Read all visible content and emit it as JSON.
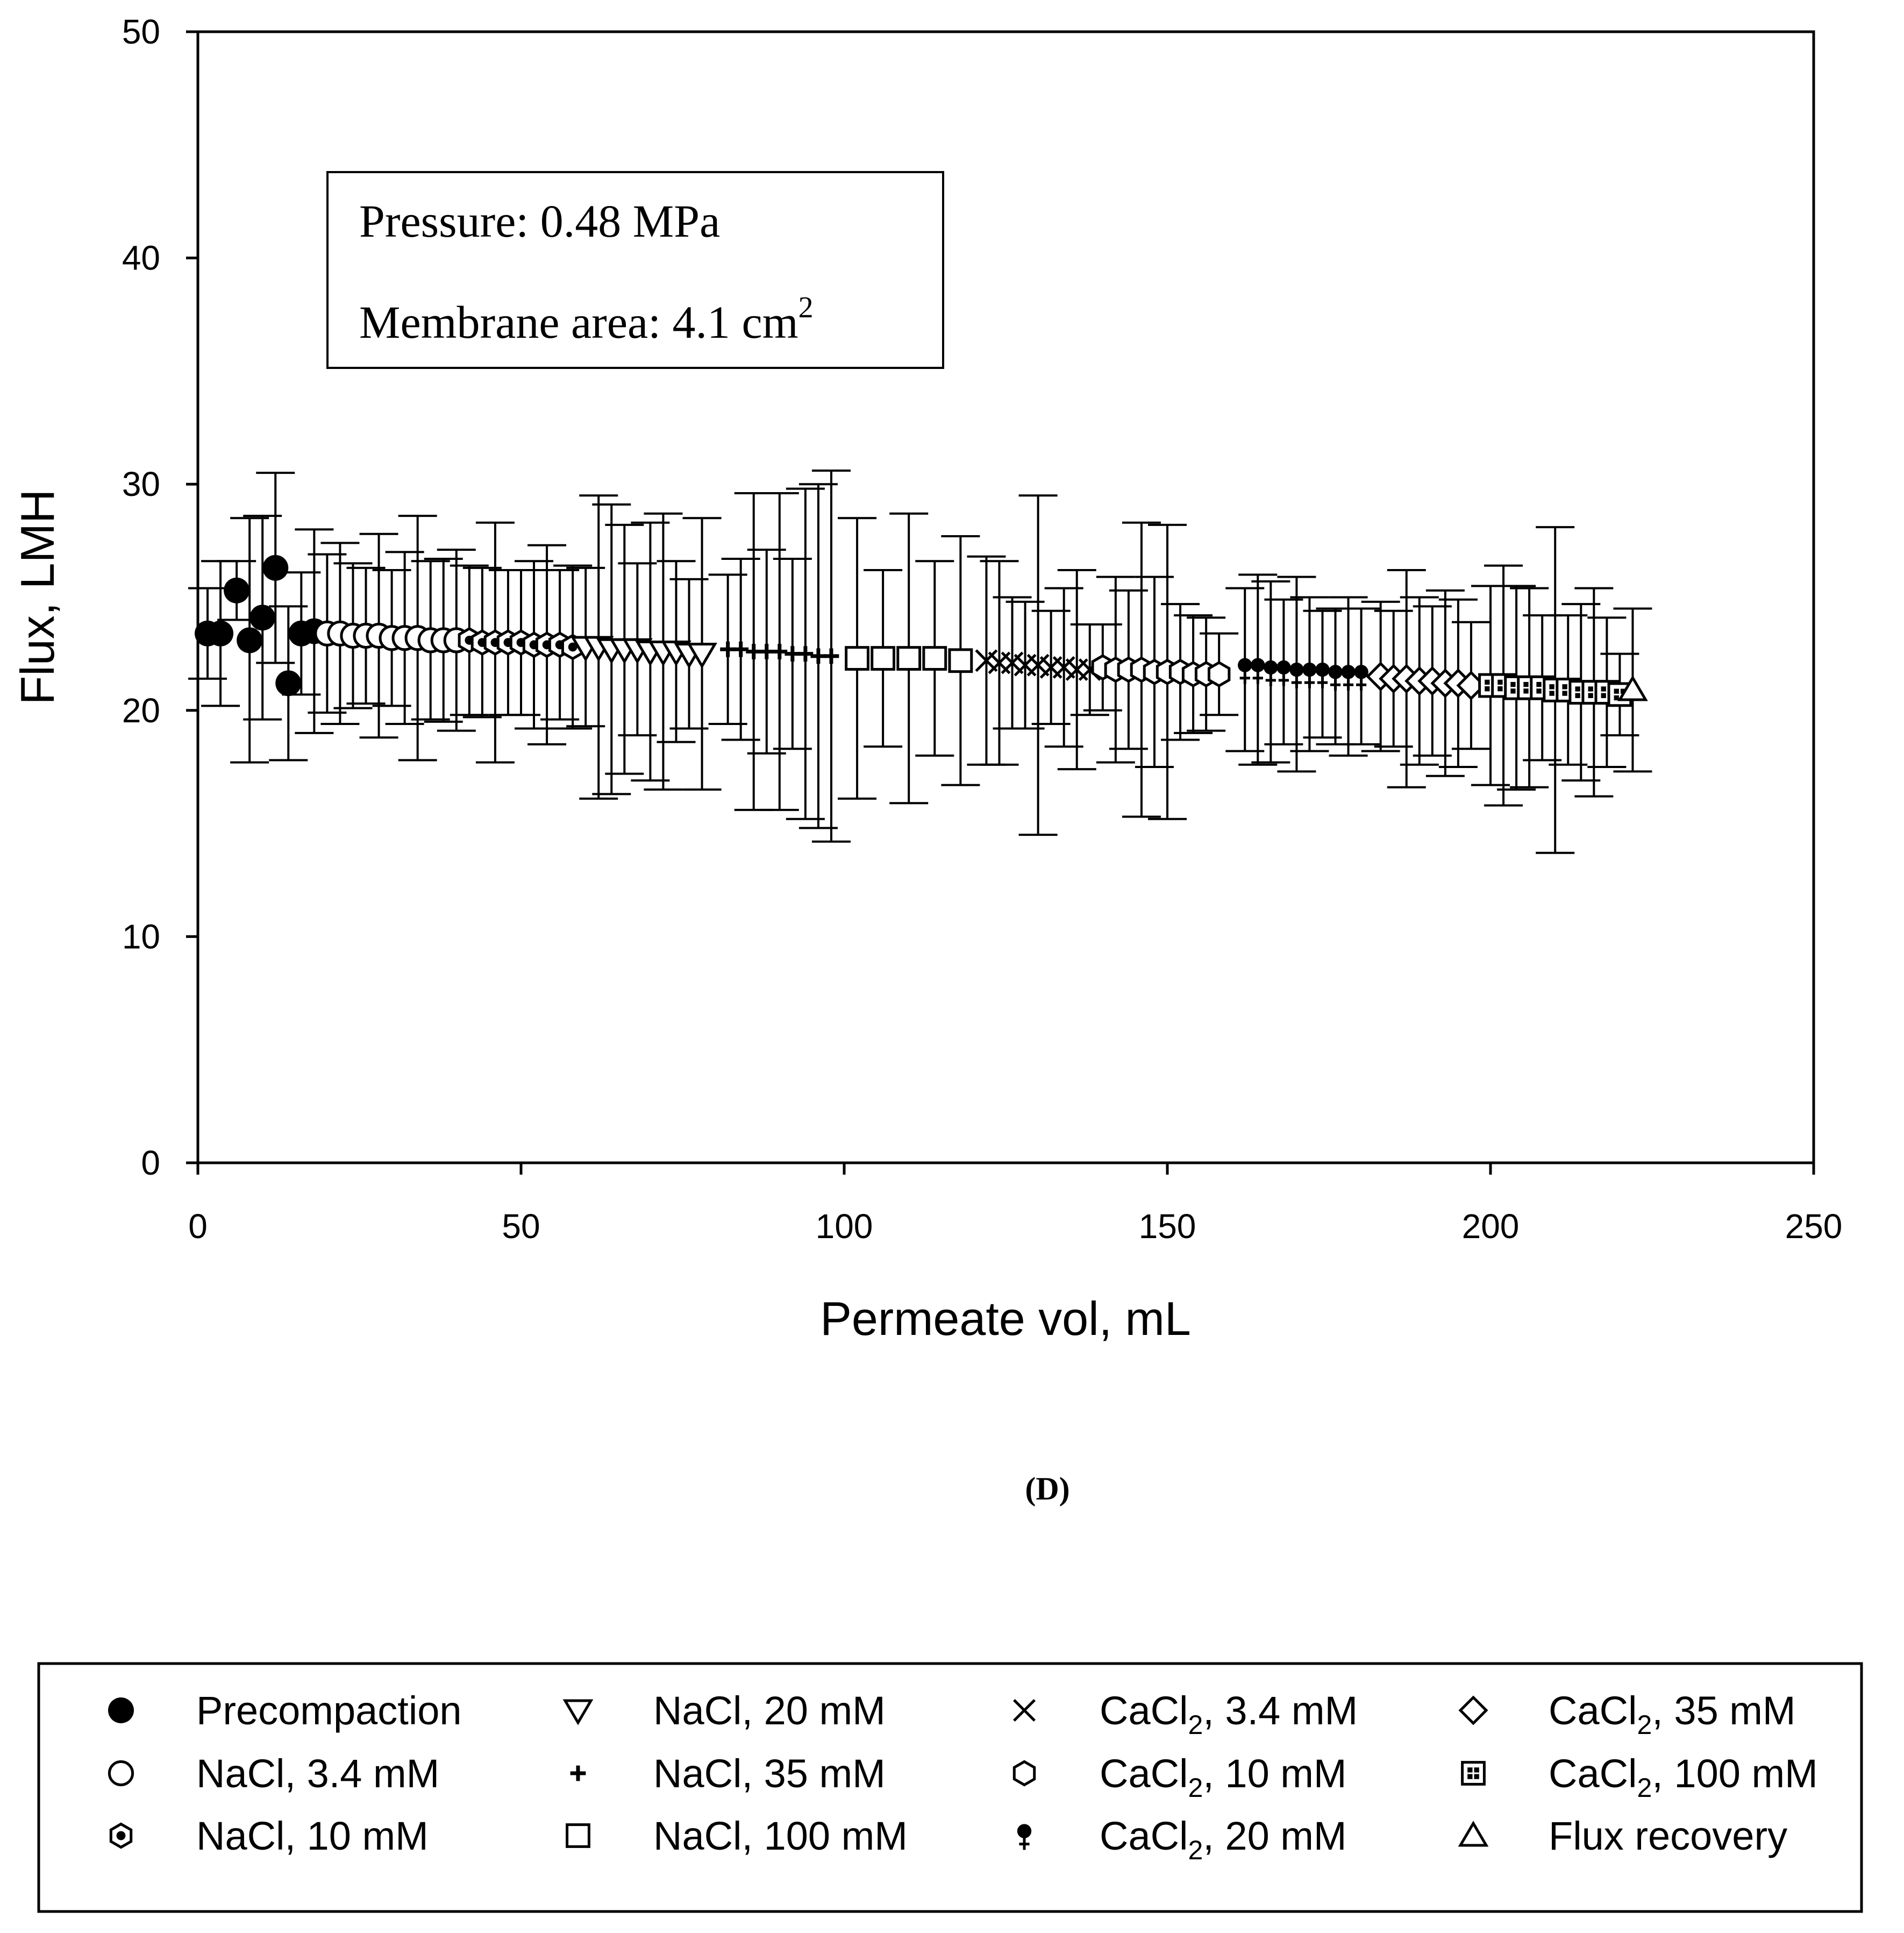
{
  "panel_label": "(D)",
  "annotation": {
    "line1": "Pressure: 0.48 MPa",
    "line2_prefix": "Membrane area: 4.1 cm",
    "line2_sup": "2"
  },
  "legend": {
    "items": [
      {
        "label": "Precompaction",
        "marker": "filled-circle"
      },
      {
        "label": "NaCl, 3.4 mM",
        "marker": "open-circle"
      },
      {
        "label": "NaCl, 10 mM",
        "marker": "hex-dot"
      },
      {
        "label": "NaCl, 20 mM",
        "marker": "down-triangle"
      },
      {
        "label": "NaCl, 35 mM",
        "marker": "plus"
      },
      {
        "label": "NaCl, 100 mM",
        "marker": "open-square"
      },
      {
        "label": "CaCl2, 3.4 mM",
        "marker": "cross",
        "pre": "CaCl",
        "sub": "2",
        "post": ", 3.4 mM"
      },
      {
        "label": "CaCl2, 10 mM",
        "marker": "open-hexagon",
        "pre": "CaCl",
        "sub": "2",
        "post": ", 10 mM"
      },
      {
        "label": "CaCl2, 20 mM",
        "marker": "female",
        "pre": "CaCl",
        "sub": "2",
        "post": ", 20 mM"
      },
      {
        "label": "CaCl2, 35 mM",
        "marker": "diamond",
        "pre": "CaCl",
        "sub": "2",
        "post": ", 35 mM"
      },
      {
        "label": "CaCl2, 100 mM",
        "marker": "square-plus",
        "pre": "CaCl",
        "sub": "2",
        "post": ", 100 mM"
      },
      {
        "label": "Flux recovery",
        "marker": "up-triangle"
      }
    ]
  },
  "chart_data": {
    "type": "scatter",
    "title": "",
    "xlabel": "Permeate vol, mL",
    "ylabel": "Flux, LMH",
    "xlim": [
      0,
      250
    ],
    "ylim": [
      0,
      50
    ],
    "xticks": [
      0,
      50,
      100,
      150,
      200,
      250
    ],
    "yticks": [
      0,
      10,
      20,
      30,
      40,
      50
    ],
    "error_bars": true,
    "series": [
      {
        "name": "Precompaction",
        "marker": "filled-circle",
        "points": [
          [
            1.5,
            23.4,
            2.0
          ],
          [
            3.5,
            23.4,
            3.2
          ],
          [
            6,
            25.3,
            1.3
          ],
          [
            8,
            23.1,
            5.4
          ],
          [
            10,
            24.1,
            4.5
          ],
          [
            12,
            26.3,
            4.2
          ],
          [
            14,
            21.2,
            3.4
          ],
          [
            16,
            23.4,
            2.7
          ],
          [
            18,
            23.5,
            4.5
          ]
        ]
      },
      {
        "name": "NaCl, 3.4 mM",
        "marker": "open-circle",
        "points": [
          [
            20,
            23.4,
            3.5
          ],
          [
            22,
            23.4,
            4.0
          ],
          [
            24,
            23.3,
            3.2
          ],
          [
            26,
            23.3,
            3.0
          ],
          [
            28,
            23.3,
            4.5
          ],
          [
            30,
            23.2,
            3.0
          ],
          [
            32,
            23.2,
            3.8
          ],
          [
            34,
            23.2,
            5.4
          ],
          [
            36,
            23.1,
            3.5
          ],
          [
            38,
            23.1,
            3.6
          ],
          [
            40,
            23.1,
            4.0
          ]
        ]
      },
      {
        "name": "NaCl, 10 mM",
        "marker": "hex-dot",
        "points": [
          [
            42,
            23.1,
            3.3
          ],
          [
            44,
            23.0,
            3.3
          ],
          [
            46,
            23.0,
            5.3
          ],
          [
            48,
            23.0,
            3.2
          ],
          [
            50,
            23.0,
            3.2
          ],
          [
            52,
            22.9,
            3.7
          ],
          [
            54,
            22.9,
            4.4
          ],
          [
            56,
            22.9,
            3.3
          ],
          [
            58,
            22.8,
            3.6
          ]
        ]
      },
      {
        "name": "NaCl, 20 mM",
        "marker": "down-triangle",
        "points": [
          [
            60,
            22.8,
            3.5
          ],
          [
            62,
            22.8,
            6.7
          ],
          [
            64,
            22.7,
            6.4
          ],
          [
            66,
            22.7,
            5.5
          ],
          [
            68,
            22.7,
            3.8
          ],
          [
            70,
            22.6,
            5.7
          ],
          [
            72,
            22.6,
            6.1
          ],
          [
            74,
            22.6,
            4.0
          ],
          [
            76,
            22.5,
            3.3
          ],
          [
            78,
            22.5,
            6.0
          ]
        ]
      },
      {
        "name": "NaCl, 35 mM",
        "marker": "plus",
        "points": [
          [
            82,
            22.7,
            3.3
          ],
          [
            84,
            22.7,
            4.0
          ],
          [
            86,
            22.6,
            7.0
          ],
          [
            88,
            22.6,
            4.5
          ],
          [
            90,
            22.6,
            7.0
          ],
          [
            92,
            22.5,
            4.2
          ],
          [
            94,
            22.5,
            7.3
          ],
          [
            96,
            22.4,
            7.6
          ],
          [
            98,
            22.4,
            8.2
          ]
        ]
      },
      {
        "name": "NaCl, 100 mM",
        "marker": "open-square",
        "points": [
          [
            102,
            22.3,
            6.2
          ],
          [
            106,
            22.3,
            3.9
          ],
          [
            110,
            22.3,
            6.4
          ],
          [
            114,
            22.3,
            4.3
          ],
          [
            118,
            22.2,
            5.5
          ]
        ]
      },
      {
        "name": "CaCl2, 3.4 mM",
        "marker": "cross",
        "points": [
          [
            122,
            22.2,
            4.6
          ],
          [
            124,
            22.1,
            4.5
          ],
          [
            126,
            22.1,
            2.9
          ],
          [
            128,
            22.0,
            2.8
          ],
          [
            130,
            22.0,
            7.5
          ],
          [
            132,
            21.9,
            2.5
          ],
          [
            134,
            21.9,
            3.5
          ],
          [
            136,
            21.8,
            4.4
          ],
          [
            138,
            21.8,
            2.0
          ]
        ]
      },
      {
        "name": "CaCl2, 10 mM",
        "marker": "open-hexagon",
        "points": [
          [
            140,
            21.9,
            1.9
          ],
          [
            142,
            21.8,
            4.1
          ],
          [
            144,
            21.8,
            3.5
          ],
          [
            146,
            21.8,
            6.5
          ],
          [
            148,
            21.7,
            4.2
          ],
          [
            150,
            21.7,
            6.5
          ],
          [
            152,
            21.7,
            3.0
          ],
          [
            154,
            21.6,
            2.6
          ],
          [
            156,
            21.6,
            2.5
          ],
          [
            158,
            21.6,
            1.8
          ]
        ]
      },
      {
        "name": "CaCl2, 20 mM",
        "marker": "female",
        "points": [
          [
            162,
            21.8,
            3.6
          ],
          [
            164,
            21.8,
            4.2
          ],
          [
            166,
            21.7,
            4.0
          ],
          [
            168,
            21.7,
            3.2
          ],
          [
            170,
            21.6,
            4.3
          ],
          [
            172,
            21.6,
            3.4
          ],
          [
            174,
            21.6,
            2.8
          ],
          [
            176,
            21.5,
            3.0
          ],
          [
            178,
            21.5,
            3.5
          ],
          [
            180,
            21.5,
            3.0
          ]
        ]
      },
      {
        "name": "CaCl2, 35 mM",
        "marker": "diamond",
        "points": [
          [
            183,
            21.5,
            3.3
          ],
          [
            185,
            21.4,
            3.0
          ],
          [
            187,
            21.4,
            4.8
          ],
          [
            189,
            21.3,
            3.7
          ],
          [
            191,
            21.3,
            3.3
          ],
          [
            193,
            21.2,
            4.1
          ],
          [
            195,
            21.2,
            3.7
          ],
          [
            197,
            21.1,
            2.8
          ]
        ]
      },
      {
        "name": "CaCl2, 100 mM",
        "marker": "square-plus",
        "points": [
          [
            200,
            21.1,
            4.4
          ],
          [
            202,
            21.1,
            5.3
          ],
          [
            204,
            21.0,
            4.5
          ],
          [
            206,
            21.0,
            4.4
          ],
          [
            208,
            21.0,
            3.2
          ],
          [
            210,
            20.9,
            7.2
          ],
          [
            212,
            20.9,
            3.3
          ],
          [
            214,
            20.8,
            3.9
          ],
          [
            216,
            20.8,
            4.6
          ],
          [
            218,
            20.8,
            3.3
          ],
          [
            220,
            20.7,
            1.8
          ]
        ]
      },
      {
        "name": "Flux recovery",
        "marker": "up-triangle",
        "points": [
          [
            222,
            20.9,
            3.6
          ]
        ]
      }
    ]
  }
}
